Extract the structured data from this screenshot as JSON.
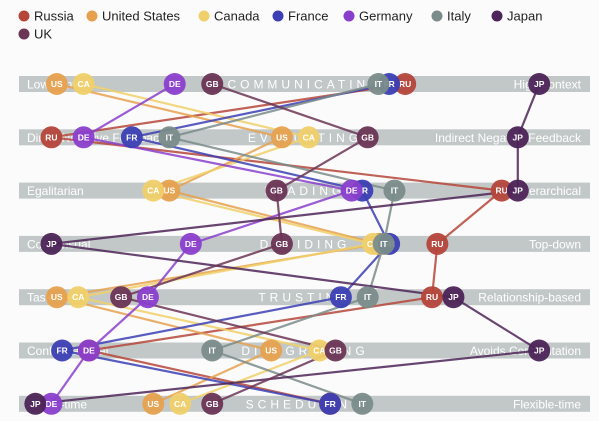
{
  "chart_data": {
    "type": "line",
    "title": "",
    "xlabel": "",
    "ylabel": "",
    "xlim": [
      0,
      100
    ],
    "legend_position": "top-left",
    "dimensions": [
      {
        "key": "communicating",
        "title": "COMMUNICATING",
        "left_label": "Low-context",
        "right_label": "High-context"
      },
      {
        "key": "evaluating",
        "title": "EVALUATING",
        "left_label": "Direct Negative Feedback",
        "right_label": "Indirect Negative Feedback"
      },
      {
        "key": "leading",
        "title": "LEADING",
        "left_label": "Egalitarian",
        "right_label": "Hierarchical"
      },
      {
        "key": "deciding",
        "title": "DECIDING",
        "left_label": "Consensual",
        "right_label": "Top-down"
      },
      {
        "key": "trusting",
        "title": "TRUSTING",
        "left_label": "Task-based",
        "right_label": "Relationship-based"
      },
      {
        "key": "disagreeing",
        "title": "DISAGREEING",
        "left_label": "Confrontational",
        "right_label": "Avoids Confrontation"
      },
      {
        "key": "scheduling",
        "title": "SCHEDULING",
        "left_label": "Linear-time",
        "right_label": "Flexible-time"
      }
    ],
    "series": [
      {
        "name": "Russia",
        "code": "RU",
        "color": "#b5463a",
        "values": [
          70,
          4,
          88,
          76,
          75,
          11,
          56
        ]
      },
      {
        "name": "United States",
        "code": "US",
        "color": "#e6a14f",
        "values": [
          5,
          47,
          26,
          65,
          5,
          45,
          23
        ]
      },
      {
        "name": "Canada",
        "code": "CA",
        "color": "#f0d06a",
        "values": [
          10,
          52,
          23,
          64,
          9,
          54,
          28
        ]
      },
      {
        "name": "France",
        "code": "FR",
        "color": "#3c3fb4",
        "values": [
          67,
          19,
          62,
          67,
          58,
          6,
          56
        ]
      },
      {
        "name": "Germany",
        "code": "DE",
        "color": "#8a3fcc",
        "values": [
          27,
          10,
          60,
          30,
          22,
          11,
          4
        ]
      },
      {
        "name": "Italy",
        "code": "IT",
        "color": "#7a8c8a",
        "values": [
          65,
          26,
          68,
          66,
          63,
          34,
          62
        ]
      },
      {
        "name": "Japan",
        "code": "JP",
        "color": "#4d2458",
        "values": [
          95,
          91,
          91,
          4,
          79,
          95,
          1
        ]
      },
      {
        "name": "UK",
        "code": "GB",
        "color": "#6b3556",
        "values": [
          34,
          63,
          46,
          47,
          17,
          57,
          34
        ]
      }
    ]
  }
}
